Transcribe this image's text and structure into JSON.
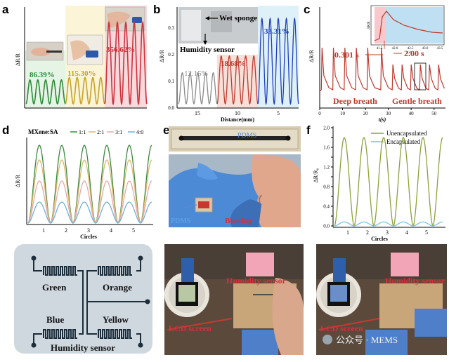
{
  "panel_labels": [
    "a",
    "b",
    "c",
    "d",
    "e",
    "f"
  ],
  "chart_data": [
    {
      "panel": "a",
      "type": "line",
      "ylabel": "ΔR/R",
      "segments": [
        {
          "label": "86.39%",
          "color": "#2e8b3a",
          "bg": "#e6f4e6",
          "value_pct": 86.39
        },
        {
          "label": "115.30%",
          "color": "#c9a227",
          "bg": "#fbf4d6",
          "value_pct": 115.3
        },
        {
          "label": "356.62%",
          "color": "#d0313b",
          "bg": "#f8d9dc",
          "value_pct": 356.62
        }
      ]
    },
    {
      "panel": "b",
      "type": "line",
      "xlabel": "Distance(mm)",
      "ylabel": "ΔR/R",
      "x_ticks": [
        "15",
        "10",
        "5"
      ],
      "y_ticks": [
        "0.0",
        "0.1",
        "0.2",
        "0.3"
      ],
      "ylim": [
        0,
        0.38
      ],
      "annotations": [
        "Wet sponge",
        "Humidity sensor"
      ],
      "segments": [
        {
          "label": "12.15%",
          "color": "#8a8a8a",
          "bg": "#ffffff",
          "value": 0.1215
        },
        {
          "label": "18.68%",
          "color": "#c0392b",
          "bg": "#f8e0d8",
          "value": 0.1868
        },
        {
          "label": "33.31%",
          "color": "#1f3fbf",
          "bg": "#dff1f8",
          "value": 0.3331
        }
      ]
    },
    {
      "panel": "c",
      "type": "line",
      "xlabel": "t(s)",
      "ylabel": "ΔR/R",
      "x_ticks": [
        "0",
        "10",
        "20",
        "30",
        "40",
        "50"
      ],
      "xlim": [
        0,
        55
      ],
      "annotations": [
        "0.301 s",
        "2.00 s",
        "Deep breath",
        "Gentle breath"
      ],
      "inset": {
        "x_ticks": [
          "41.5",
          "42.0",
          "42.5",
          "43.0",
          "43.5"
        ],
        "xlabel": "t(s)",
        "ylabel": "ΔR/R"
      },
      "color": "#c0392b",
      "deep_breath_peaks_t": [
        1,
        6,
        11,
        16,
        21,
        27
      ],
      "gentle_breath_peaks_t": [
        32,
        36,
        40,
        44,
        48,
        52
      ]
    },
    {
      "panel": "d",
      "type": "line",
      "xlabel": "Circles",
      "ylabel": "ΔR/R",
      "x_ticks": [
        "1",
        "2",
        "3",
        "4",
        "5"
      ],
      "legend_title": "MXene:SA",
      "series": [
        {
          "name": "1:1",
          "color": "#3a8a3a",
          "peak": 3.7
        },
        {
          "name": "2:1",
          "color": "#d9b86c",
          "peak": 3.0
        },
        {
          "name": "3:1",
          "color": "#e8a8a8",
          "peak": 2.0
        },
        {
          "name": "4:0",
          "color": "#6fb1d8",
          "peak": 1.0
        }
      ],
      "ylim": [
        0,
        4
      ]
    },
    {
      "panel": "e",
      "type": "photo",
      "annotations": [
        "PDMS",
        "PDMS",
        "Blowing"
      ]
    },
    {
      "panel": "f",
      "type": "line",
      "xlabel": "Circles",
      "ylabel": "ΔR/R₀",
      "x_ticks": [
        "1",
        "2",
        "3",
        "4",
        "5"
      ],
      "y_ticks": [
        "0.0",
        "0.2",
        "0.4",
        "0.6",
        "0.8",
        "1.0",
        "1.2",
        "1.4",
        "1.6",
        "1.8",
        "2.0"
      ],
      "ylim": [
        0,
        2.0
      ],
      "legend_position": "top-right",
      "series": [
        {
          "name": "Unencapsulated",
          "color": "#8aa23a",
          "peak": 1.8
        },
        {
          "name": "Encapsulated",
          "color": "#7ac3df",
          "peak": 0.08
        }
      ]
    }
  ],
  "bottom": {
    "circuit_labels": [
      "Green",
      "Orange",
      "Blue",
      "Yellow",
      "Humidity sensor"
    ],
    "photo1_labels": [
      "Humidity sensor",
      "LCD screen"
    ],
    "photo2_labels": [
      "Humidity sensor",
      "LCD screen"
    ],
    "watermark": "公众号 · MEMS"
  }
}
